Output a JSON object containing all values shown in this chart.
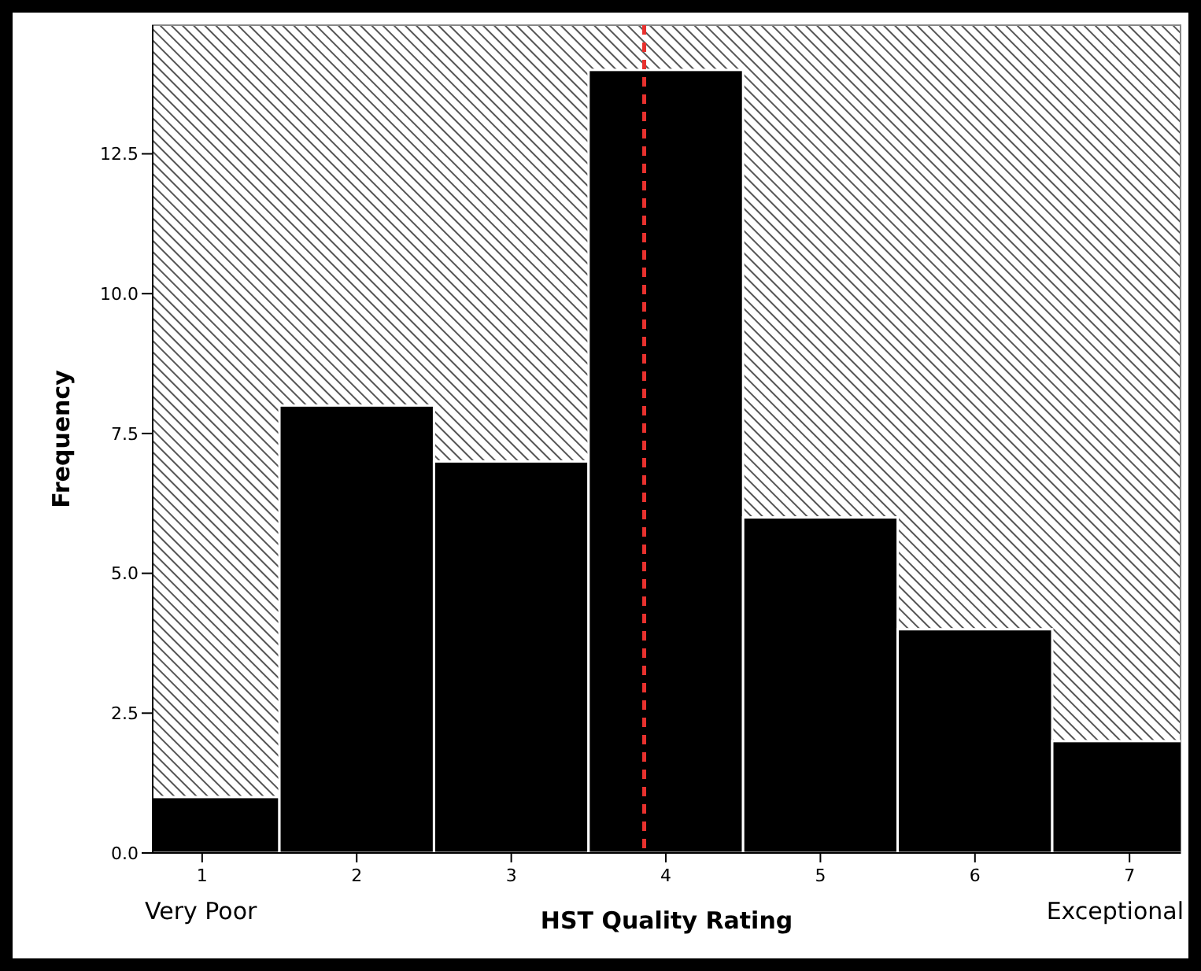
{
  "chart_data": {
    "type": "histogram",
    "xlabel": "HST Quality Rating",
    "ylabel": "Frequency",
    "bins": [
      0.5,
      1.5,
      2.5,
      3.5,
      4.5,
      5.5,
      6.5,
      7.5
    ],
    "values": [
      1,
      8,
      7,
      14,
      6,
      4,
      2
    ],
    "color": "#000000",
    "xlim": [
      0.68,
      7.33
    ],
    "xticks": [
      1,
      2,
      3,
      4,
      5,
      6,
      7
    ],
    "ylim": [
      0,
      14.8
    ],
    "yticks": [
      {
        "value": 0,
        "label": "0.0"
      },
      {
        "value": 2.5,
        "label": "2.5"
      },
      {
        "value": 5,
        "label": "5.0"
      },
      {
        "value": 7.5,
        "label": "7.5"
      },
      {
        "value": 10,
        "label": "10.0"
      },
      {
        "value": 12.5,
        "label": "12.5"
      }
    ],
    "ref_lines": [
      {
        "axis": "x",
        "value": 3.86,
        "color": "#e8312e",
        "line_style": "dashed"
      }
    ],
    "annotations": [
      "Very Poor",
      "Exceptional"
    ],
    "grid": false
  }
}
